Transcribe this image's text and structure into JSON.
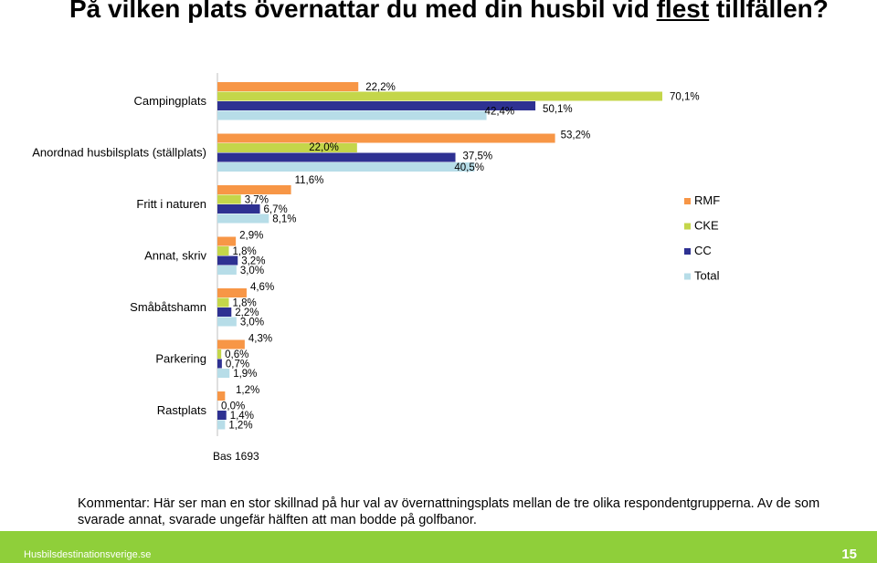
{
  "title_pre": "På vilken plats övernattar du med din husbil vid ",
  "title_emph": "flest",
  "title_post": " tillfällen?",
  "chart_data": {
    "type": "bar",
    "orientation": "horizontal",
    "categories": [
      "Campingplats",
      "Anordnad husbilsplats (ställplats)",
      "Fritt i naturen",
      "Annat, skriv",
      "Småbåtshamn",
      "Parkering",
      "Rastplats"
    ],
    "series": [
      {
        "name": "RMF",
        "color": "#f79646",
        "values": [
          22.2,
          53.2,
          11.6,
          2.9,
          4.6,
          4.3,
          1.2
        ],
        "labels": [
          "22,2%",
          "53,2%",
          "11,6%",
          "2,9%",
          "4,6%",
          "4,3%",
          "1,2%"
        ]
      },
      {
        "name": "CKE",
        "color": "#c4d64a",
        "values": [
          70.1,
          22.0,
          3.7,
          1.8,
          1.8,
          0.6,
          0.0
        ],
        "labels": [
          "70,1%",
          "22,0%",
          "3,7%",
          "1,8%",
          "1,8%",
          "0,6%",
          "0,0%"
        ]
      },
      {
        "name": "CC",
        "color": "#2e3192",
        "values": [
          50.1,
          37.5,
          6.7,
          3.2,
          2.2,
          0.7,
          1.4
        ],
        "labels": [
          "50,1%",
          "37,5%",
          "6,7%",
          "3,2%",
          "2,2%",
          "0,7%",
          "1,4%"
        ]
      },
      {
        "name": "Total",
        "color": "#b7dde8",
        "values": [
          42.4,
          40.5,
          8.1,
          3.0,
          3.0,
          1.9,
          1.2
        ],
        "labels": [
          "42,4%",
          "40,5%",
          "8,1%",
          "3,0%",
          "3,0%",
          "1,9%",
          "1,2%"
        ]
      }
    ],
    "legend_position": "right",
    "grid": false
  },
  "base_note": "Bas 1693",
  "comment": "Kommentar: Här ser man en stor skillnad på hur val av övernattningsplats mellan de tre olika respondentgrupperna. Av de som svarade annat, svarade ungefär hälften att man bodde på golfbanor.",
  "footer": {
    "site": "Husbilsdestinationsverige.se",
    "page": "15"
  }
}
